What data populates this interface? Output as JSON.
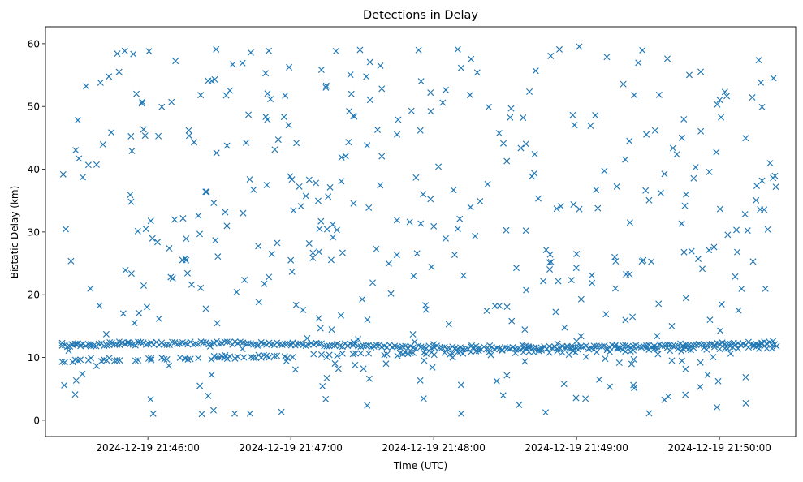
{
  "chart_data": {
    "type": "scatter",
    "title": "Detections in Delay",
    "xlabel": "Time (UTC)",
    "ylabel": "Bistatic Delay (km)",
    "x_start": "2024-12-19 21:45:24",
    "x_end": "2024-12-19 21:50:24",
    "xlim": [
      "2024-12-19 21:45:17",
      "2024-12-19 21:50:32"
    ],
    "ylim": [
      -2.6,
      62.7
    ],
    "xticks": [
      "2024-12-19 21:46:00",
      "2024-12-19 21:47:00",
      "2024-12-19 21:48:00",
      "2024-12-19 21:49:00",
      "2024-12-19 21:50:00"
    ],
    "yticks": [
      0,
      10,
      20,
      30,
      40,
      50,
      60
    ],
    "marker": "x",
    "color": "#1f77b4",
    "grid": false,
    "legend": "none",
    "series": [
      {
        "description": "Tracked target (upper, then lower branch) and second track",
        "points": [
          [
            "2024-12-19 21:45:24",
            12.3
          ],
          [
            "2024-12-19 21:45:28",
            12.1
          ],
          [
            "2024-12-19 21:45:32",
            12.0
          ],
          [
            "2024-12-19 21:45:36",
            12.1
          ],
          [
            "2024-12-19 21:45:44",
            12.4
          ],
          [
            "2024-12-19 21:45:48",
            12.5
          ],
          [
            "2024-12-19 21:45:52",
            12.4
          ],
          [
            "2024-12-19 21:45:56",
            12.5
          ],
          [
            "2024-12-19 21:47:20",
            8.2
          ],
          [
            "2024-12-19 21:47:27",
            8.8
          ],
          [
            "2024-12-19 21:47:40",
            9.0
          ],
          [
            "2024-12-19 21:47:56",
            9.5
          ],
          [
            "2024-12-19 21:48:08",
            10.0
          ],
          [
            "2024-12-19 21:48:24",
            10.4
          ],
          [
            "2024-12-19 21:48:40",
            10.9
          ],
          [
            "2024-12-19 21:48:56",
            11.8
          ],
          [
            "2024-12-19 21:49:04",
            10.1
          ],
          [
            "2024-12-19 21:49:12",
            9.8
          ],
          [
            "2024-12-19 21:49:24",
            9.7
          ],
          [
            "2024-12-19 21:49:40",
            9.5
          ],
          [
            "2024-12-19 21:49:52",
            9.2
          ],
          [
            "2024-12-19 21:50:06",
            12.3
          ],
          [
            "2024-12-19 21:50:16",
            12.0
          ],
          [
            "2024-12-19 21:50:24",
            11.8
          ],
          [
            "2024-12-19 21:48:40",
            11.6
          ],
          [
            "2024-12-19 21:48:52",
            12.2
          ],
          [
            "2024-12-19 21:49:00",
            12.6
          ],
          [
            "2024-12-19 21:48:00",
            12.1
          ],
          [
            "2024-12-19 21:47:52",
            12.5
          ],
          [
            "2024-12-19 21:48:16",
            11.9
          ],
          [
            "2024-12-19 21:49:00",
            26.5
          ],
          [
            "2024-12-19 21:49:16",
            26.0
          ],
          [
            "2024-12-19 21:49:28",
            25.5
          ],
          [
            "2024-12-19 21:49:40",
            15.0
          ],
          [
            "2024-12-19 21:49:56",
            16.0
          ],
          [
            "2024-12-19 21:50:08",
            17.5
          ],
          [
            "2024-12-19 21:46:16",
            25.5
          ],
          [
            "2024-12-19 21:46:40",
            33.0
          ],
          [
            "2024-12-19 21:46:52",
            26.5
          ],
          [
            "2024-12-19 21:47:00",
            25.5
          ]
        ]
      }
    ]
  }
}
